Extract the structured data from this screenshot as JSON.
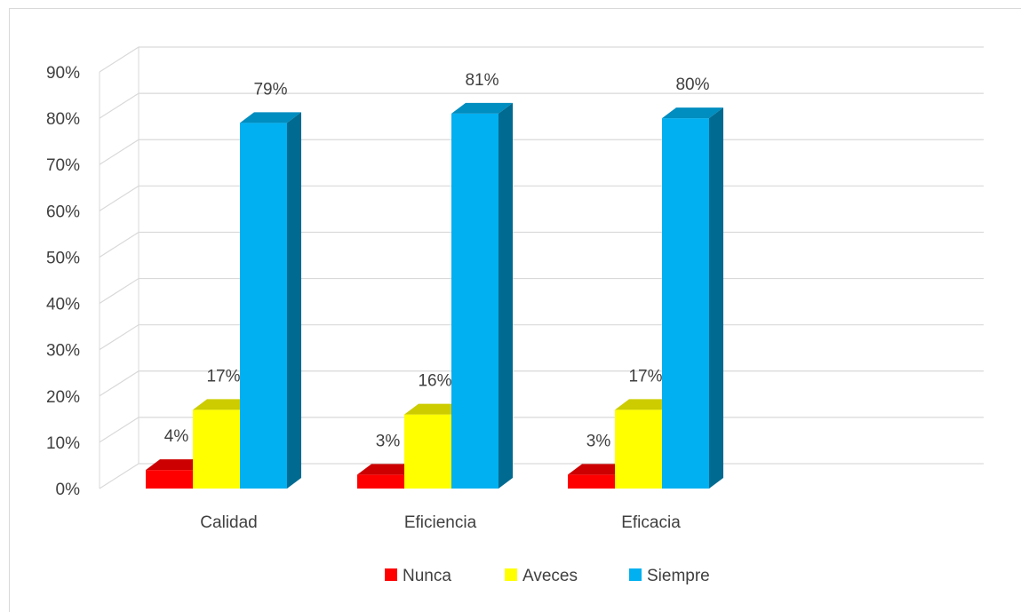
{
  "chart_data": {
    "type": "bar",
    "view": "3d-clustered-column",
    "title": "",
    "xlabel": "",
    "ylabel": "",
    "categories": [
      "Calidad",
      "Eficiencia",
      "Eficacia"
    ],
    "series": [
      {
        "name": "Nunca",
        "values": [
          4,
          3,
          3
        ],
        "labels": [
          "4%",
          "3%",
          "3%"
        ],
        "color": "#ff0000"
      },
      {
        "name": "Aveces",
        "values": [
          17,
          16,
          17
        ],
        "labels": [
          "17%",
          "16%",
          "17%"
        ],
        "color": "#ffff00"
      },
      {
        "name": "Siempre",
        "values": [
          79,
          81,
          80
        ],
        "labels": [
          "79%",
          "81%",
          "80%"
        ],
        "color": "#00b0f0"
      }
    ],
    "ylim": [
      0,
      90
    ],
    "yticks": [
      "0%",
      "10%",
      "20%",
      "30%",
      "40%",
      "50%",
      "60%",
      "70%",
      "80%",
      "90%"
    ],
    "grid": true,
    "legend_position": "bottom"
  }
}
